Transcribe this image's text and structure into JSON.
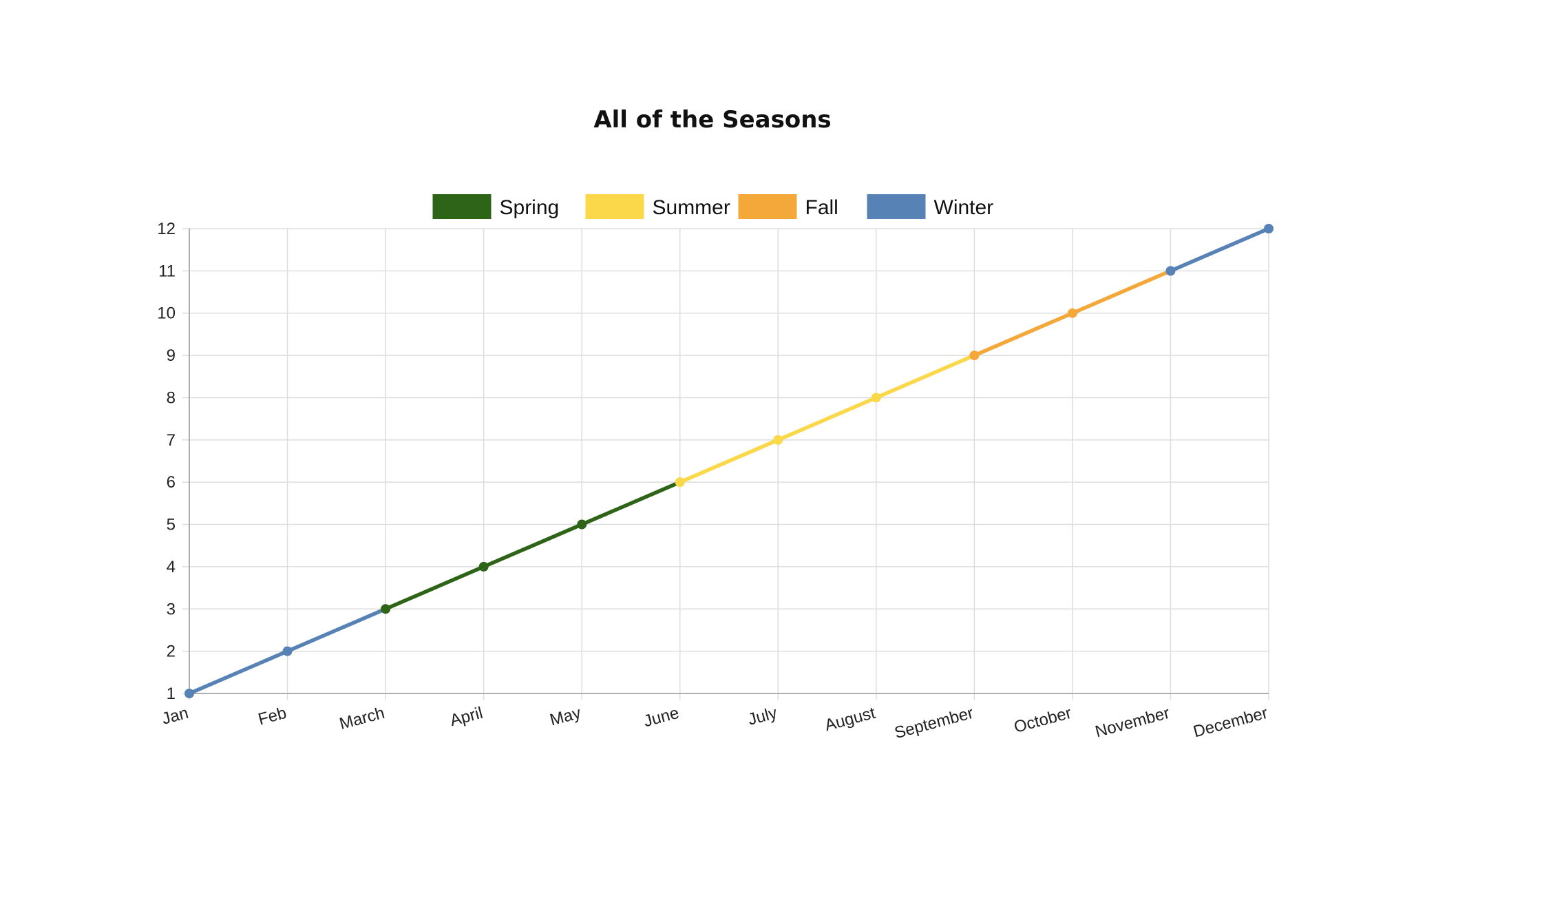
{
  "chart_data": {
    "type": "line",
    "title": "All of the Seasons",
    "xlabel": "",
    "ylabel": "",
    "categories": [
      "Jan",
      "Feb",
      "March",
      "April",
      "May",
      "June",
      "July",
      "August",
      "September",
      "October",
      "November",
      "December"
    ],
    "values": [
      1,
      2,
      3,
      4,
      5,
      6,
      7,
      8,
      9,
      10,
      11,
      12
    ],
    "ylim": [
      1,
      12
    ],
    "yticks": [
      1,
      2,
      3,
      4,
      5,
      6,
      7,
      8,
      9,
      10,
      11,
      12
    ],
    "grid": true,
    "legend_position": "top-center",
    "series": [
      {
        "name": "Spring",
        "color": "#2e6417",
        "segments": [
          [
            2,
            5
          ]
        ]
      },
      {
        "name": "Summer",
        "color": "#fad84a",
        "segments": [
          [
            5,
            8
          ]
        ]
      },
      {
        "name": "Fall",
        "color": "#f5a83a",
        "segments": [
          [
            8,
            10
          ]
        ]
      },
      {
        "name": "Winter",
        "color": "#5682b5",
        "segments": [
          [
            0,
            2
          ],
          [
            10,
            11
          ]
        ]
      }
    ]
  }
}
